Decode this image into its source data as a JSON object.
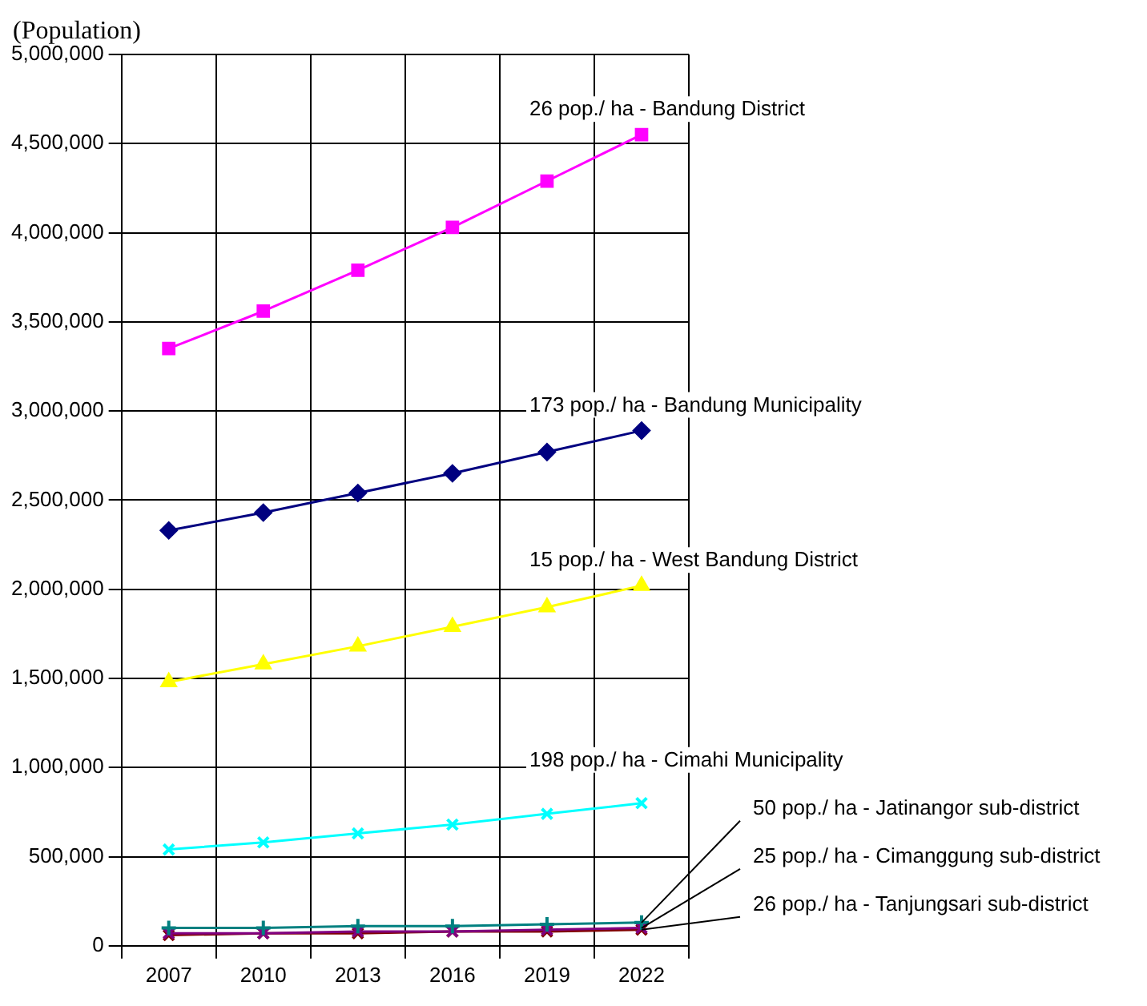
{
  "chart_data": {
    "type": "line",
    "ylabel": "(Population)",
    "categories": [
      "2007",
      "2010",
      "2013",
      "2016",
      "2019",
      "2022"
    ],
    "series": [
      {
        "color": "#ff00ff",
        "marker": "square",
        "values": [
          3350000,
          3560000,
          3790000,
          4030000,
          4290000,
          4550000
        ]
      },
      {
        "color": "#000080",
        "marker": "diamond",
        "values": [
          2330000,
          2430000,
          2540000,
          2650000,
          2770000,
          2890000
        ]
      },
      {
        "color": "#ffff00",
        "marker": "triangle",
        "values": [
          1480000,
          1580000,
          1680000,
          1790000,
          1900000,
          2020000
        ]
      },
      {
        "color": "#00ffff",
        "marker": "cross",
        "values": [
          540000,
          580000,
          630000,
          680000,
          740000,
          800000
        ]
      },
      {
        "color": "#008080",
        "marker": "plus",
        "values": [
          100000,
          100000,
          110000,
          110000,
          120000,
          130000
        ]
      },
      {
        "color": "#800080",
        "marker": "cross",
        "values": [
          70000,
          70000,
          80000,
          80000,
          90000,
          100000
        ]
      },
      {
        "color": "#800000",
        "marker": "cross",
        "values": [
          60000,
          70000,
          70000,
          80000,
          80000,
          90000
        ]
      }
    ],
    "ylim": [
      0,
      5000000
    ],
    "yticks": [
      0,
      {
        "value": 500000,
        "label": "500,000"
      },
      {
        "value": 1000000,
        "label": "1,000,000"
      },
      {
        "value": 1500000,
        "label": "1,500,000"
      },
      {
        "value": 2000000,
        "label": "2,000,000"
      },
      {
        "value": 2500000,
        "label": "2,500,000"
      },
      {
        "value": 3000000,
        "label": "3,000,000"
      },
      {
        "value": 3500000,
        "label": "3,500,000"
      },
      {
        "value": 4000000,
        "label": "4,000,000"
      },
      {
        "value": 4500000,
        "label": "4,500,000"
      },
      {
        "value": 5000000,
        "label": "5,000,000"
      }
    ],
    "grid": true,
    "legend": false,
    "line_style": "solid",
    "annotations": [
      {
        "text": "26 pop./ ha - Bandung District",
        "x": "2022",
        "y": 4550000
      },
      {
        "text": "173 pop./ ha - Bandung Municipality",
        "x": "2022",
        "y": 2890000
      },
      {
        "text": "15 pop./ ha - West Bandung District",
        "x": "2022",
        "y": 2020000
      },
      {
        "text": "198 pop./ ha - Cimahi Municipality",
        "x": "2022",
        "y": 800000
      },
      {
        "text": "50 pop./ ha - Jatinangor sub-district",
        "x": "2022",
        "y": 130000
      },
      {
        "text": "25 pop./ ha - Cimanggung sub-district",
        "x": "2022",
        "y": 100000
      },
      {
        "text": "26 pop./ ha - Tanjungsari sub-district",
        "x": "2022",
        "y": 90000
      }
    ]
  }
}
